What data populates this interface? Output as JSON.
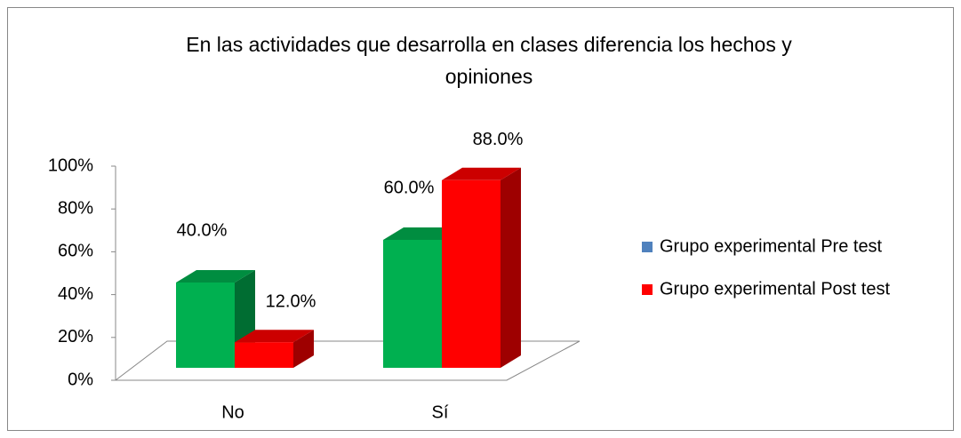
{
  "chart_data": {
    "type": "bar3d",
    "title": [
      "En las actividades que desarrolla en clases diferencia los hechos y",
      "opiniones"
    ],
    "categories": [
      "No",
      "Sí"
    ],
    "series": [
      {
        "name": "Grupo experimental Pre test",
        "color": "#00b050",
        "legend_color": "#4f81bd",
        "values": [
          40,
          60
        ],
        "value_labels": [
          "40.0%",
          "60.0%"
        ]
      },
      {
        "name": "Grupo experimental Post test",
        "color": "#ff0000",
        "legend_color": "#ff0000",
        "values": [
          12,
          88
        ],
        "value_labels": [
          "12.0%",
          "88.0%"
        ]
      }
    ],
    "ylim": [
      0,
      100
    ],
    "yticks": [
      {
        "value": 0,
        "label": "0%"
      },
      {
        "value": 20,
        "label": "20%"
      },
      {
        "value": 40,
        "label": "40%"
      },
      {
        "value": 60,
        "label": "60%"
      },
      {
        "value": 80,
        "label": "80%"
      },
      {
        "value": 100,
        "label": "100%"
      }
    ],
    "legend": "right"
  }
}
